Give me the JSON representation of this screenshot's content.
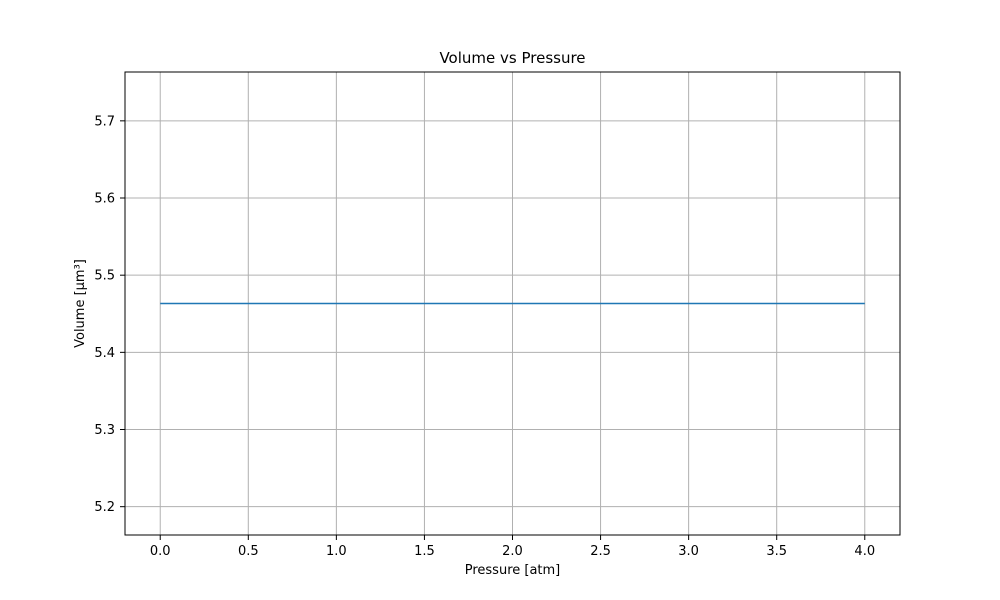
{
  "chart_data": {
    "type": "line",
    "title": "Volume vs Pressure",
    "xlabel": "Pressure [atm]",
    "ylabel": "Volume [µm³]",
    "xlim": [
      -0.2,
      4.2
    ],
    "ylim": [
      5.1633,
      5.7633
    ],
    "x_ticks": [
      0.0,
      0.5,
      1.0,
      1.5,
      2.0,
      2.5,
      3.0,
      3.5,
      4.0
    ],
    "x_tick_labels": [
      "0.0",
      "0.5",
      "1.0",
      "1.5",
      "2.0",
      "2.5",
      "3.0",
      "3.5",
      "4.0"
    ],
    "y_ticks": [
      5.2,
      5.3,
      5.4,
      5.5,
      5.6,
      5.7
    ],
    "y_tick_labels": [
      "5.2",
      "5.3",
      "5.4",
      "5.5",
      "5.6",
      "5.7"
    ],
    "grid": true,
    "series": [
      {
        "x": [
          0.0,
          0.5,
          1.0,
          1.5,
          2.0,
          2.5,
          3.0,
          3.5,
          4.0
        ],
        "y": [
          5.4633,
          5.4633,
          5.4633,
          5.4633,
          5.4633,
          5.4633,
          5.4633,
          5.4633,
          5.4633
        ],
        "color": "#1f77b4"
      }
    ],
    "grid_color": "#b0b0b0",
    "axis_color": "#000000"
  }
}
